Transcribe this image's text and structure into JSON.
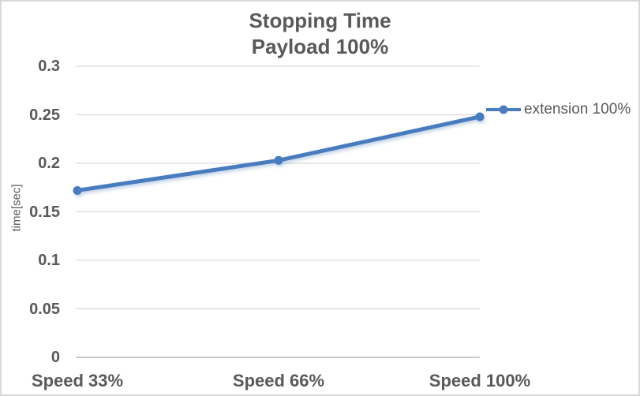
{
  "chart_data": {
    "type": "line",
    "title": "Stopping Time",
    "subtitle": "Payload 100%",
    "ylabel": "time[sec]",
    "xlabel": "",
    "categories": [
      "Speed 33%",
      "Speed 66%",
      "Speed 100%"
    ],
    "series": [
      {
        "name": "extension 100%",
        "values": [
          0.172,
          0.203,
          0.248
        ],
        "color": "#4A7CBE",
        "marker": "circle"
      }
    ],
    "ylim": [
      0,
      0.3
    ],
    "yticks": [
      {
        "value": 0,
        "label": "0"
      },
      {
        "value": 0.05,
        "label": "0.05"
      },
      {
        "value": 0.1,
        "label": "0.1"
      },
      {
        "value": 0.15,
        "label": "0.15"
      },
      {
        "value": 0.2,
        "label": "0.2"
      },
      {
        "value": 0.25,
        "label": "0.25"
      },
      {
        "value": 0.3,
        "label": "0.3"
      }
    ],
    "grid": true,
    "legend_position": "right",
    "colors": {
      "grid": "#D9D9D9",
      "axis_line": "#C9C9C9",
      "text": "#595959",
      "shadow": "#7BA0CE",
      "background": "#FFFFFF",
      "frame_border": "#D9D9D9"
    }
  }
}
